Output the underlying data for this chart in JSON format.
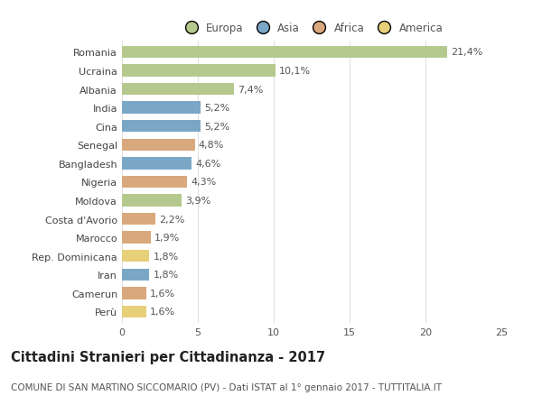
{
  "countries": [
    "Romania",
    "Ucraina",
    "Albania",
    "India",
    "Cina",
    "Senegal",
    "Bangladesh",
    "Nigeria",
    "Moldova",
    "Costa d'Avorio",
    "Marocco",
    "Rep. Dominicana",
    "Iran",
    "Camerun",
    "Perù"
  ],
  "values": [
    21.4,
    10.1,
    7.4,
    5.2,
    5.2,
    4.8,
    4.6,
    4.3,
    3.9,
    2.2,
    1.9,
    1.8,
    1.8,
    1.6,
    1.6
  ],
  "labels": [
    "21,4%",
    "10,1%",
    "7,4%",
    "5,2%",
    "5,2%",
    "4,8%",
    "4,6%",
    "4,3%",
    "3,9%",
    "2,2%",
    "1,9%",
    "1,8%",
    "1,8%",
    "1,6%",
    "1,6%"
  ],
  "continents": [
    "Europa",
    "Europa",
    "Europa",
    "Asia",
    "Asia",
    "Africa",
    "Asia",
    "Africa",
    "Europa",
    "Africa",
    "Africa",
    "America",
    "Asia",
    "Africa",
    "America"
  ],
  "continent_colors": {
    "Europa": "#b5c98e",
    "Asia": "#7ba7c7",
    "Africa": "#d9a87c",
    "America": "#e8d07a"
  },
  "legend_order": [
    "Europa",
    "Asia",
    "Africa",
    "America"
  ],
  "title": "Cittadini Stranieri per Cittadinanza - 2017",
  "subtitle": "COMUNE DI SAN MARTINO SICCOMARIO (PV) - Dati ISTAT al 1° gennaio 2017 - TUTTITALIA.IT",
  "xlim": [
    0,
    25
  ],
  "xticks": [
    0,
    5,
    10,
    15,
    20,
    25
  ],
  "bg_color": "#ffffff",
  "grid_color": "#e0e0e0",
  "bar_height": 0.65,
  "label_fontsize": 8,
  "tick_fontsize": 8,
  "title_fontsize": 10.5,
  "subtitle_fontsize": 7.5
}
